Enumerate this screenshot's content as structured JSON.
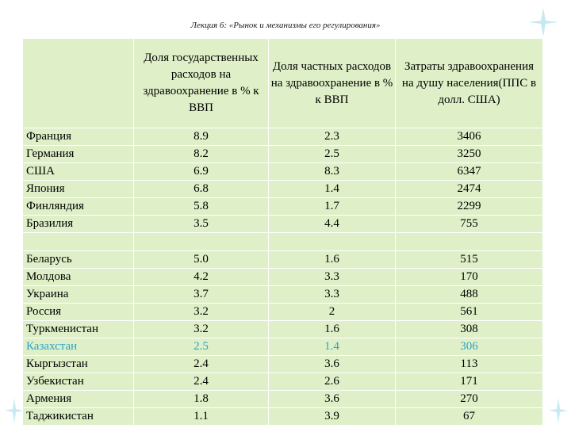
{
  "title": "Лекция 6: «Рынок и механизмы его регулирования»",
  "headers": {
    "country": "",
    "gov": "Доля государственных расходов на здравоохранение в % к ВВП",
    "priv": "Доля частных расходов на здравоохранение в % к ВВП",
    "percap": "Затраты здравоохранения на душу населения(ППС в долл. США)"
  },
  "group1": [
    {
      "country": "Франция",
      "gov": "8.9",
      "priv": "2.3",
      "percap": "3406"
    },
    {
      "country": "Германия",
      "gov": "8.2",
      "priv": "2.5",
      "percap": "3250"
    },
    {
      "country": "США",
      "gov": "6.9",
      "priv": "8.3",
      "percap": "6347"
    },
    {
      "country": "Япония",
      "gov": "6.8",
      "priv": "1.4",
      "percap": "2474"
    },
    {
      "country": "Финляндия",
      "gov": "5.8",
      "priv": "1.7",
      "percap": "2299"
    },
    {
      "country": "Бразилия",
      "gov": "3.5",
      "priv": "4.4",
      "percap": "755"
    }
  ],
  "group2": [
    {
      "country": "Беларусь",
      "gov": "5.0",
      "priv": "1.6",
      "percap": "515"
    },
    {
      "country": "Молдова",
      "gov": "4.2",
      "priv": "3.3",
      "percap": "170"
    },
    {
      "country": "Украина",
      "gov": "3.7",
      "priv": "3.3",
      "percap": "488"
    },
    {
      "country": "Россия",
      "gov": "3.2",
      "priv": "2",
      "percap": "561"
    },
    {
      "country": "Туркменистан",
      "gov": "3.2",
      "priv": "1.6",
      "percap": "308"
    },
    {
      "country": "Казахстан",
      "gov": "2.5",
      "priv": "1.4",
      "percap": "306",
      "highlight": true
    },
    {
      "country": "Кыргызстан",
      "gov": "2.4",
      "priv": "3.6",
      "percap": "113"
    },
    {
      "country": "Узбекистан",
      "gov": "2.4",
      "priv": "2.6",
      "percap": "171"
    },
    {
      "country": "Армения",
      "gov": "1.8",
      "priv": "3.6",
      "percap": "270"
    },
    {
      "country": "Таджикистан",
      "gov": "1.1",
      "priv": "3.9",
      "percap": "67"
    }
  ],
  "colors": {
    "cell_bg": "#dff0c8",
    "highlight_text": "#2aa3c8",
    "grid": "#ffffff"
  }
}
